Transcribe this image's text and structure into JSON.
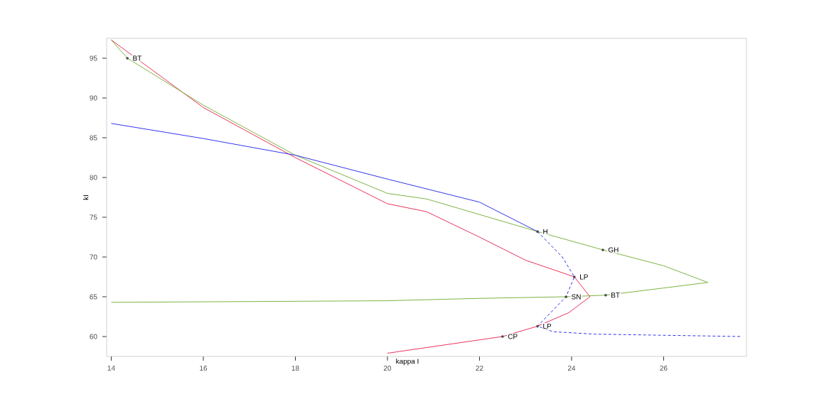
{
  "chart_data": {
    "type": "line",
    "xlabel": "kappa I",
    "ylabel": "kI",
    "xlim": [
      13.9,
      27.8
    ],
    "ylim": [
      57.5,
      97.5
    ],
    "xticks": [
      14,
      16,
      18,
      20,
      22,
      24,
      26
    ],
    "yticks": [
      60,
      65,
      70,
      75,
      80,
      85,
      90,
      95
    ],
    "grid": false,
    "series": [
      {
        "color": "#e8335a",
        "line_style": "solid",
        "x": [
          14.0,
          16.0,
          18.0,
          20.0,
          20.85,
          22.0,
          23.0,
          24.06,
          24.4,
          23.94,
          23.26,
          22.5,
          20.0
        ],
        "values": [
          97.3,
          88.8,
          82.5,
          76.7,
          75.7,
          72.5,
          69.6,
          67.5,
          65.0,
          63.0,
          61.3,
          60.0,
          57.9
        ]
      },
      {
        "color": "#7cb342",
        "line_style": "solid",
        "x": [
          14.0,
          14.35,
          16.0,
          18.0,
          20.0,
          20.85,
          23.26,
          24.68,
          26.0,
          26.96,
          26.0,
          24.74,
          23.88,
          22.0,
          20.0,
          14.0
        ],
        "values": [
          97.3,
          95.0,
          89.1,
          82.8,
          78.0,
          77.3,
          73.2,
          70.9,
          68.9,
          66.8,
          66.1,
          65.2,
          65.0,
          64.8,
          64.5,
          64.3
        ]
      },
      {
        "color": "#3333ee",
        "line_style": "solid",
        "x": [
          14.0,
          16.0,
          18.0,
          20.0,
          22.0,
          23.26
        ],
        "values": [
          86.8,
          84.9,
          82.8,
          79.8,
          76.9,
          73.2
        ]
      },
      {
        "color": "#3333ee",
        "line_style": "dashed",
        "x": [
          23.26,
          23.8,
          24.06,
          23.88,
          23.26,
          23.6,
          24.5,
          27.7
        ],
        "values": [
          73.2,
          70.0,
          67.5,
          65.0,
          61.3,
          60.6,
          60.3,
          60.0
        ]
      }
    ],
    "annotations": [
      {
        "text": "BT",
        "x": 14.35,
        "y": 95.0
      },
      {
        "text": "H",
        "x": 23.26,
        "y": 73.2
      },
      {
        "text": "GH",
        "x": 24.68,
        "y": 70.9
      },
      {
        "text": "LP",
        "x": 24.06,
        "y": 67.5
      },
      {
        "text": "SN",
        "x": 23.88,
        "y": 65.0
      },
      {
        "text": "BT",
        "x": 24.74,
        "y": 65.2
      },
      {
        "text": "LP",
        "x": 23.26,
        "y": 61.3
      },
      {
        "text": "CP",
        "x": 22.5,
        "y": 60.0
      }
    ]
  }
}
